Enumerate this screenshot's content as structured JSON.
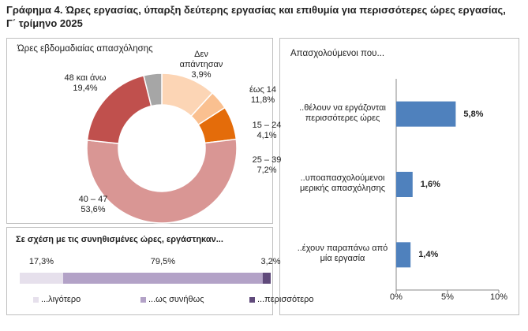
{
  "title": "Γράφημα 4. Ώρες εργασίας, ύπαρξη δεύτερης εργασίας και επιθυμία για περισσότερες ώρες εργασίας, Γ΄ τρίμηνο 2025",
  "chart_data": [
    {
      "type": "donut",
      "title": "Ώρες εβδομαδιαίας απασχόλησης",
      "categories": [
        "έως 14",
        "15 – 24",
        "25 – 39",
        "40 – 47",
        "48 και άνω",
        "Δεν απάντησαν"
      ],
      "values": [
        11.8,
        4.1,
        7.2,
        53.6,
        19.4,
        3.9
      ],
      "value_labels": [
        "11,8%",
        "4,1%",
        "7,2%",
        "53,6%",
        "19,4%",
        "3,9%"
      ],
      "colors": [
        "#fcd5b5",
        "#fac090",
        "#e46c0a",
        "#d99694",
        "#c0504d",
        "#a6a6a6"
      ]
    },
    {
      "type": "stacked-bar",
      "title": "Σε σχέση με τις συνηθισμένες ώρες, εργάστηκαν...",
      "series": [
        {
          "name": "...λιγότερο",
          "color": "#e6e0ec",
          "values": [
            17.3
          ],
          "value_labels": [
            "17,3%"
          ]
        },
        {
          "name": "...ως συνήθως",
          "color": "#b3a2c7",
          "values": [
            79.5
          ],
          "value_labels": [
            "79,5%"
          ]
        },
        {
          "name": "...περισσότερο",
          "color": "#604a7b",
          "values": [
            3.2
          ],
          "value_labels": [
            "3,2%"
          ]
        }
      ]
    },
    {
      "type": "hbar",
      "title": "Απασχολούμενοι που...",
      "categories": [
        "..θέλουν να εργάζονται περισσότερες ώρες",
        "..υποαπασχολούμενοι μερικής απασχόλησης",
        "..έχουν παραπάνω από μία εργασία"
      ],
      "values": [
        5.8,
        1.6,
        1.4
      ],
      "value_labels": [
        "5,8%",
        "1,6%",
        "1,4%"
      ],
      "color": "#4f81bd",
      "xlim": [
        0,
        10
      ],
      "xticks": [
        {
          "value": 0,
          "label": "0%"
        },
        {
          "value": 5,
          "label": "5%"
        },
        {
          "value": 10,
          "label": "10%"
        }
      ]
    }
  ]
}
